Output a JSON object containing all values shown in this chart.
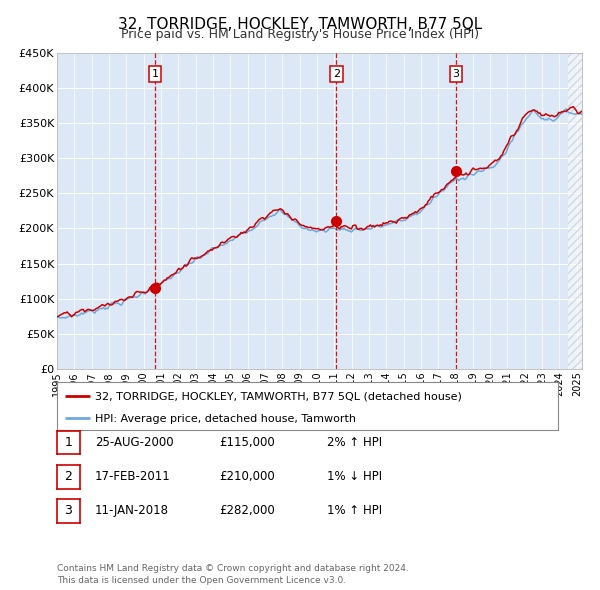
{
  "title": "32, TORRIDGE, HOCKLEY, TAMWORTH, B77 5QL",
  "subtitle": "Price paid vs. HM Land Registry's House Price Index (HPI)",
  "ylim": [
    0,
    450000
  ],
  "xlim_start": 1995.0,
  "xlim_end": 2025.3,
  "background_color": "#dce8f5",
  "grid_color": "#ffffff",
  "sale_marker_years": [
    2000.648,
    2011.13,
    2018.03
  ],
  "sale_marker_values": [
    115000,
    210000,
    282000
  ],
  "sale_labels": [
    "1",
    "2",
    "3"
  ],
  "vline_years": [
    2000.648,
    2011.13,
    2018.03
  ],
  "legend_line1": "32, TORRIDGE, HOCKLEY, TAMWORTH, B77 5QL (detached house)",
  "legend_line2": "HPI: Average price, detached house, Tamworth",
  "table_rows": [
    {
      "num": "1",
      "date": "25-AUG-2000",
      "price": "£115,000",
      "hpi": "2% ↑ HPI"
    },
    {
      "num": "2",
      "date": "17-FEB-2011",
      "price": "£210,000",
      "hpi": "1% ↓ HPI"
    },
    {
      "num": "3",
      "date": "11-JAN-2018",
      "price": "£282,000",
      "hpi": "1% ↑ HPI"
    }
  ],
  "footer": "Contains HM Land Registry data © Crown copyright and database right 2024.\nThis data is licensed under the Open Government Licence v3.0.",
  "hpi_line_color": "#6fa8dc",
  "price_line_color": "#cc0000",
  "marker_color": "#cc0000",
  "vline_color": "#cc0000",
  "title_fontsize": 11,
  "subtitle_fontsize": 9,
  "ytick_labels": [
    "£0",
    "£50K",
    "£100K",
    "£150K",
    "£200K",
    "£250K",
    "£300K",
    "£350K",
    "£400K",
    "£450K"
  ],
  "ytick_values": [
    0,
    50000,
    100000,
    150000,
    200000,
    250000,
    300000,
    350000,
    400000,
    450000
  ],
  "hatch_start": 2024.5
}
